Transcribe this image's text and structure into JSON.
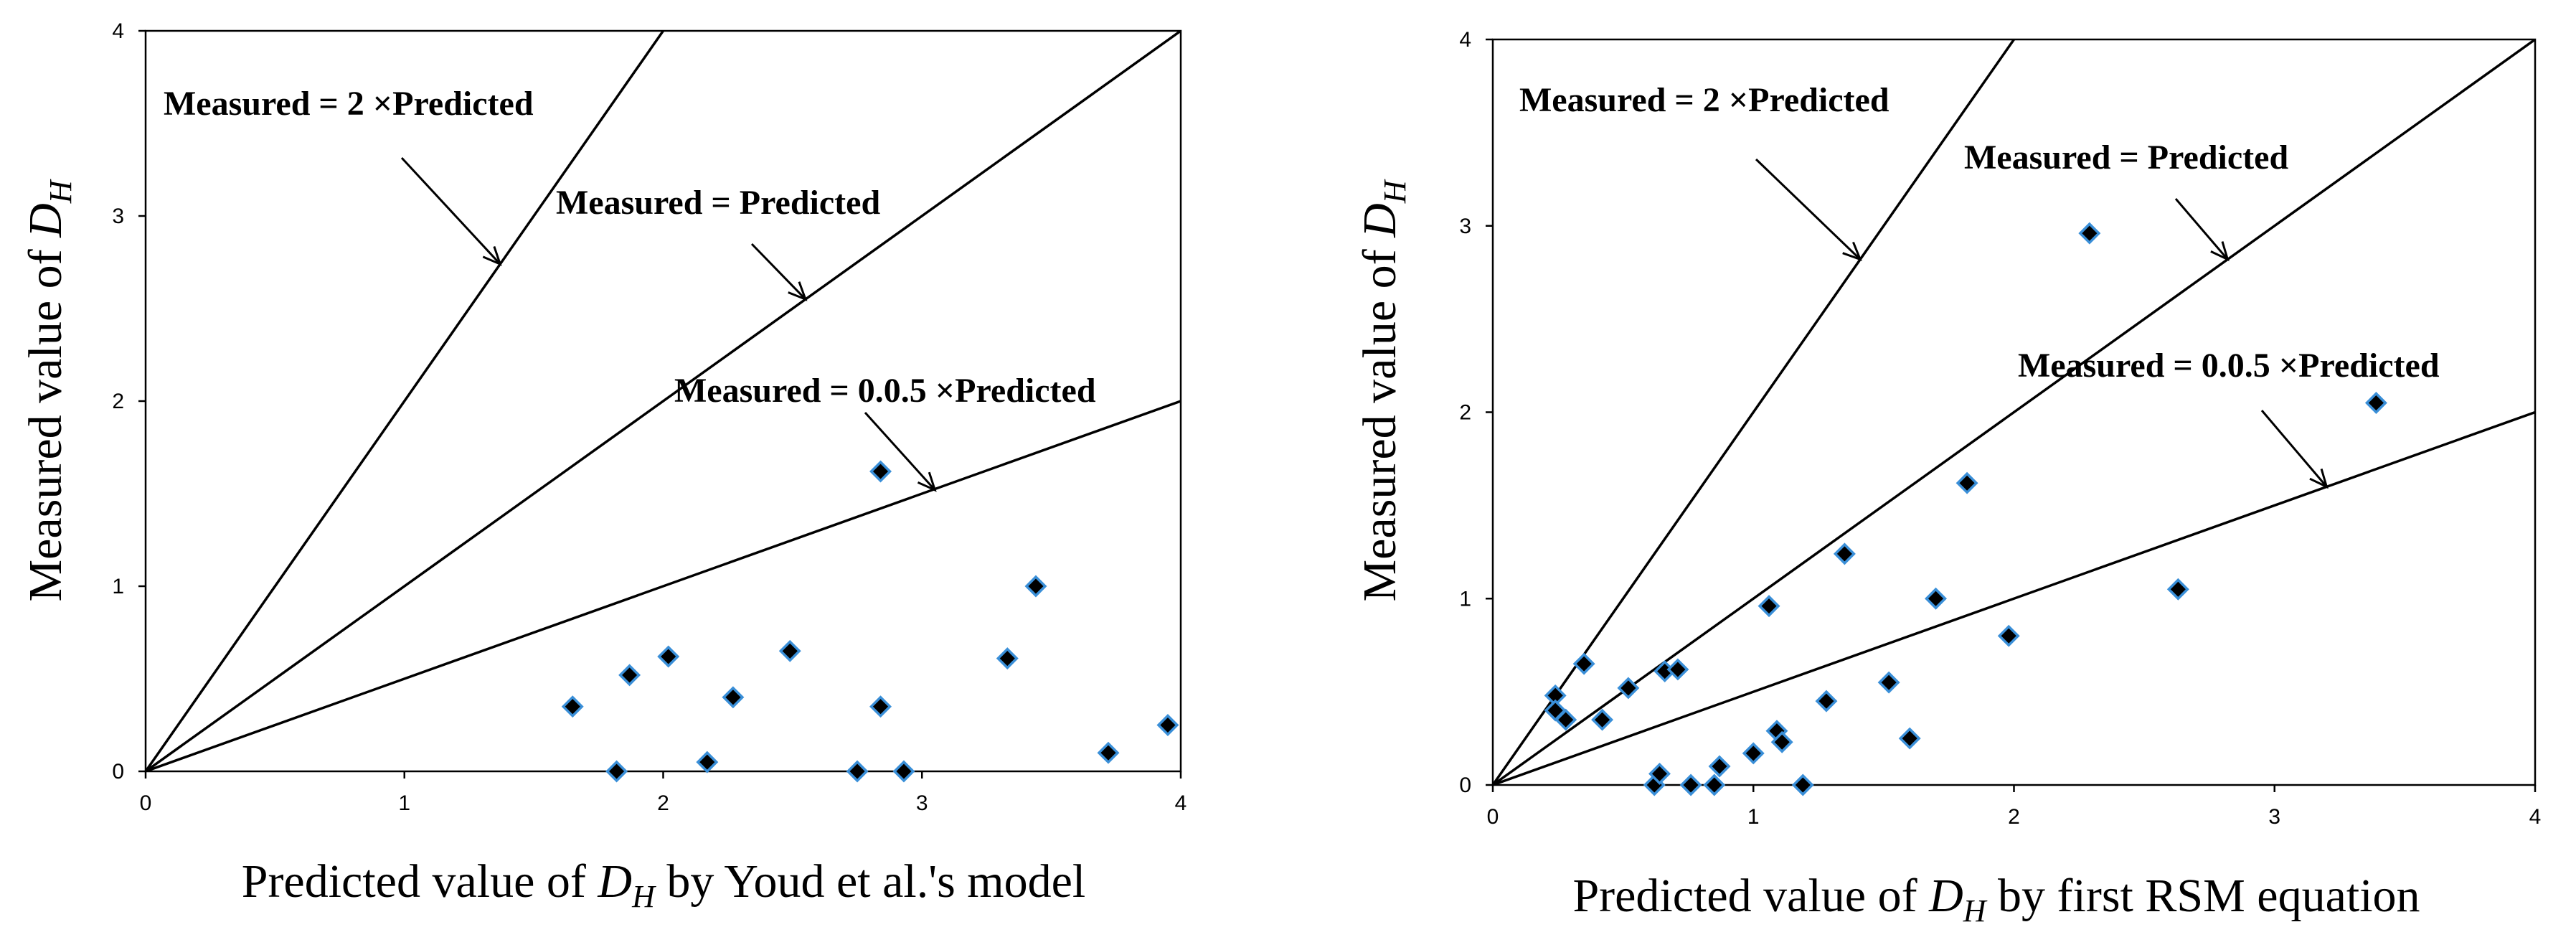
{
  "chart_data": [
    {
      "type": "scatter",
      "xlabel_prefix": "Predicted value of ",
      "xlabel_var": "D",
      "xlabel_sub": "H",
      "xlabel_suffix": " by Youd et al.'s model",
      "ylabel_prefix": "Measured value of ",
      "ylabel_var": "D",
      "ylabel_sub": "H",
      "xlim": [
        0,
        4
      ],
      "ylim": [
        0,
        4
      ],
      "xticks": [
        0,
        1,
        2,
        3,
        4
      ],
      "yticks": [
        0,
        1,
        2,
        3,
        4
      ],
      "lines": [
        {
          "name": "Measured = 2 ×Predicted",
          "slope": 2
        },
        {
          "name": "Measured = Predicted",
          "slope": 1
        },
        {
          "name": "Measured = 0.0.5 ×Predicted",
          "slope": 0.5
        }
      ],
      "annotations": [
        {
          "text": "Measured = 2 ×Predicted",
          "target_x": 1.37,
          "target_y": 2.74
        },
        {
          "text": "Measured = Predicted",
          "target_x": 2.55,
          "target_y": 2.55
        },
        {
          "text": "Measured = 0.0.5 ×Predicted",
          "target_x": 3.05,
          "target_y": 1.52
        }
      ],
      "points": [
        {
          "x": 1.65,
          "y": 0.35
        },
        {
          "x": 1.82,
          "y": 0.0
        },
        {
          "x": 1.87,
          "y": 0.52
        },
        {
          "x": 2.02,
          "y": 0.62
        },
        {
          "x": 2.17,
          "y": 0.05
        },
        {
          "x": 2.27,
          "y": 0.4
        },
        {
          "x": 2.49,
          "y": 0.65
        },
        {
          "x": 2.75,
          "y": 0.0
        },
        {
          "x": 2.84,
          "y": 1.62
        },
        {
          "x": 2.84,
          "y": 0.35
        },
        {
          "x": 2.93,
          "y": 0.0
        },
        {
          "x": 3.33,
          "y": 0.61
        },
        {
          "x": 3.44,
          "y": 1.0
        },
        {
          "x": 3.72,
          "y": 0.1
        },
        {
          "x": 3.95,
          "y": 0.25
        }
      ]
    },
    {
      "type": "scatter",
      "xlabel_prefix": "Predicted value of ",
      "xlabel_var": "D",
      "xlabel_sub": "H",
      "xlabel_suffix": " by first RSM equation",
      "ylabel_prefix": "Measured value of ",
      "ylabel_var": "D",
      "ylabel_sub": "H",
      "xlim": [
        0,
        4
      ],
      "ylim": [
        0,
        4
      ],
      "xticks": [
        0,
        1,
        2,
        3,
        4
      ],
      "yticks": [
        0,
        1,
        2,
        3,
        4
      ],
      "lines": [
        {
          "name": "Measured = 2 ×Predicted",
          "slope": 2
        },
        {
          "name": "Measured = Predicted",
          "slope": 1
        },
        {
          "name": "Measured = 0.0.5 ×Predicted",
          "slope": 0.5
        }
      ],
      "annotations": [
        {
          "text": "Measured = 2 ×Predicted",
          "target_x": 1.41,
          "target_y": 2.82
        },
        {
          "text": "Measured = Predicted",
          "target_x": 2.82,
          "target_y": 2.82
        },
        {
          "text": "Measured = 0.0.5 ×Predicted",
          "target_x": 3.2,
          "target_y": 1.6
        }
      ],
      "points": [
        {
          "x": 0.24,
          "y": 0.48
        },
        {
          "x": 0.24,
          "y": 0.4
        },
        {
          "x": 0.28,
          "y": 0.35
        },
        {
          "x": 0.35,
          "y": 0.65
        },
        {
          "x": 0.42,
          "y": 0.35
        },
        {
          "x": 0.52,
          "y": 0.52
        },
        {
          "x": 0.62,
          "y": 0.0
        },
        {
          "x": 0.64,
          "y": 0.06
        },
        {
          "x": 0.66,
          "y": 0.61
        },
        {
          "x": 0.71,
          "y": 0.62
        },
        {
          "x": 0.76,
          "y": 0.0
        },
        {
          "x": 0.85,
          "y": 0.0
        },
        {
          "x": 0.87,
          "y": 0.1
        },
        {
          "x": 1.0,
          "y": 0.17
        },
        {
          "x": 1.06,
          "y": 0.96
        },
        {
          "x": 1.09,
          "y": 0.29
        },
        {
          "x": 1.11,
          "y": 0.23
        },
        {
          "x": 1.19,
          "y": 0.0
        },
        {
          "x": 1.28,
          "y": 0.45
        },
        {
          "x": 1.35,
          "y": 1.24
        },
        {
          "x": 1.52,
          "y": 0.55
        },
        {
          "x": 1.6,
          "y": 0.25
        },
        {
          "x": 1.7,
          "y": 1.0
        },
        {
          "x": 1.82,
          "y": 1.62
        },
        {
          "x": 1.98,
          "y": 0.8
        },
        {
          "x": 2.29,
          "y": 2.96
        },
        {
          "x": 2.63,
          "y": 1.05
        },
        {
          "x": 3.39,
          "y": 2.05
        }
      ]
    }
  ]
}
